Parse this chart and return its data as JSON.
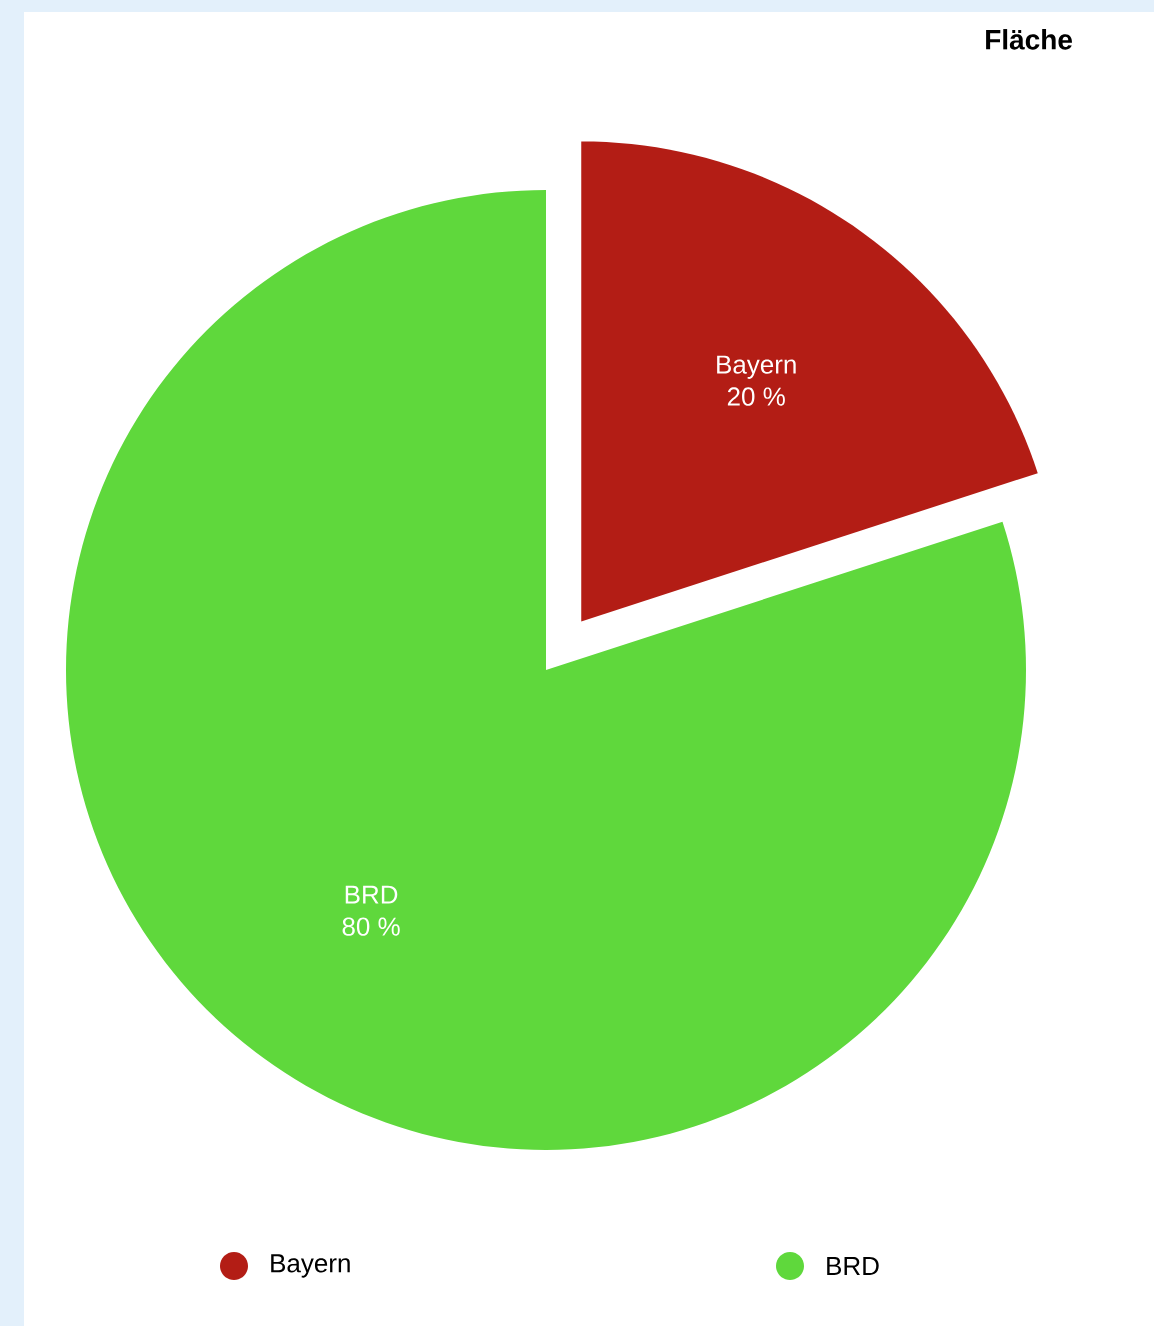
{
  "chart_data": {
    "type": "pie",
    "title": "Fläche",
    "categories": [
      "Bayern",
      "BRD"
    ],
    "values": [
      20,
      80
    ],
    "value_labels": [
      "20 %",
      "80 %"
    ],
    "colors": [
      "#b31d15",
      "#5fd83c"
    ],
    "legend": "bottom"
  }
}
